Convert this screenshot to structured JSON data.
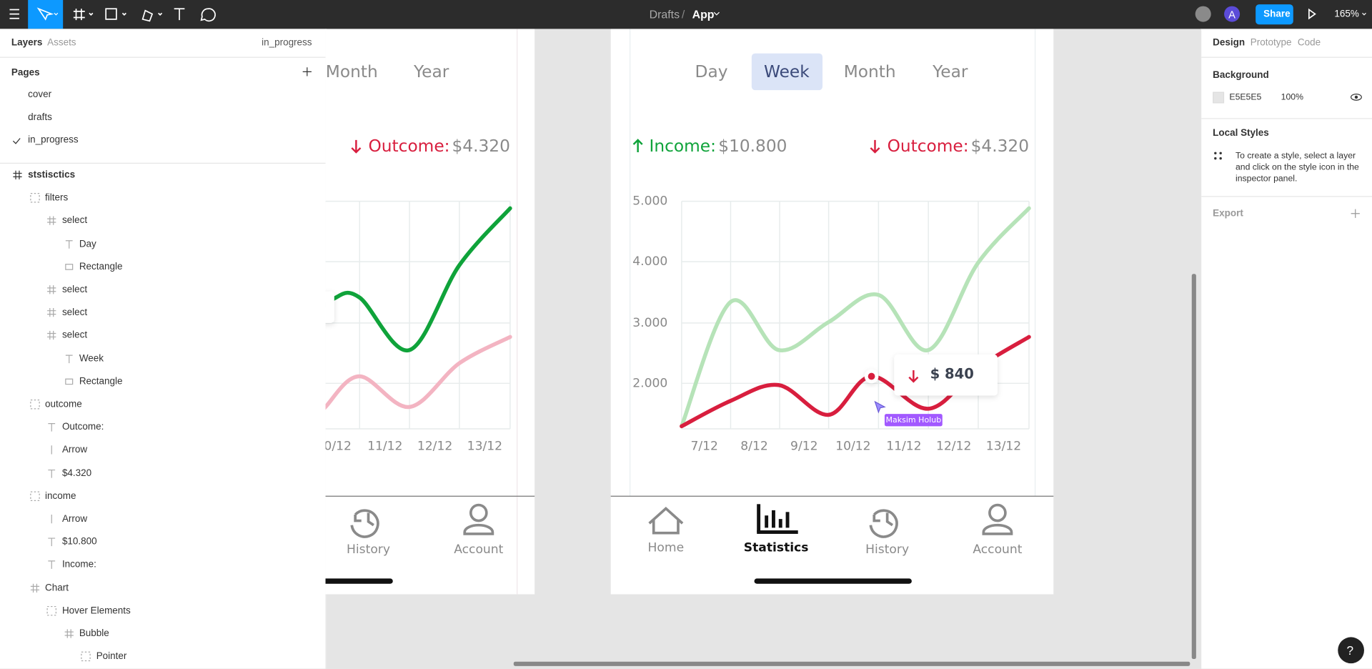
{
  "toolbar": {
    "breadcrumb": [
      "Drafts",
      "/",
      "App"
    ],
    "share": "Share",
    "avatar": "A",
    "zoom": "165%"
  },
  "left_panel": {
    "tabs": [
      "Layers",
      "Assets"
    ],
    "current_page": "in_progress",
    "pages_title": "Pages",
    "pages": [
      "cover",
      "drafts",
      "in_progress"
    ],
    "layers": [
      "ststisctics",
      "filters",
      "select",
      "Day",
      "Rectangle",
      "select",
      "select",
      "select",
      "Week",
      "Rectangle",
      "outcome",
      "Outcome:",
      "Arrow",
      "$4.320",
      "income",
      "Arrow",
      "$10.800",
      "Income:",
      "Chart",
      "Hover Elements",
      "Bubble",
      "Pointer"
    ]
  },
  "frame_left": {
    "periods": [
      "Month",
      "Year"
    ],
    "outcome_label": "Outcome:",
    "outcome_value": "$4.320",
    "x_labels": [
      "0/12",
      "11/12",
      "12/12",
      "13/12"
    ],
    "nav": [
      "History",
      "Account"
    ]
  },
  "frame_main": {
    "periods": [
      "Day",
      "Week",
      "Month",
      "Year"
    ],
    "income_label": "Income:",
    "income_value": "$10.800",
    "outcome_label": "Outcome:",
    "outcome_value": "$4.320",
    "y_labels": [
      "5.000",
      "4.000",
      "3.000",
      "2.000"
    ],
    "x_labels": [
      "7/12",
      "8/12",
      "9/12",
      "10/12",
      "11/12",
      "12/12",
      "13/12"
    ],
    "tooltip": "$ 840",
    "cursor_label": "Maksim Holub",
    "nav": [
      "Home",
      "Statistics",
      "History",
      "Account"
    ]
  },
  "right_panel": {
    "tabs": [
      "Design",
      "Prototype",
      "Code"
    ],
    "background_title": "Background",
    "background_color": "E5E5E5",
    "background_opacity": "100%",
    "local_styles_title": "Local Styles",
    "local_styles_hint": "To create a style, select a layer and click on the style icon in the inspector panel.",
    "export_title": "Export"
  },
  "help": "?"
}
